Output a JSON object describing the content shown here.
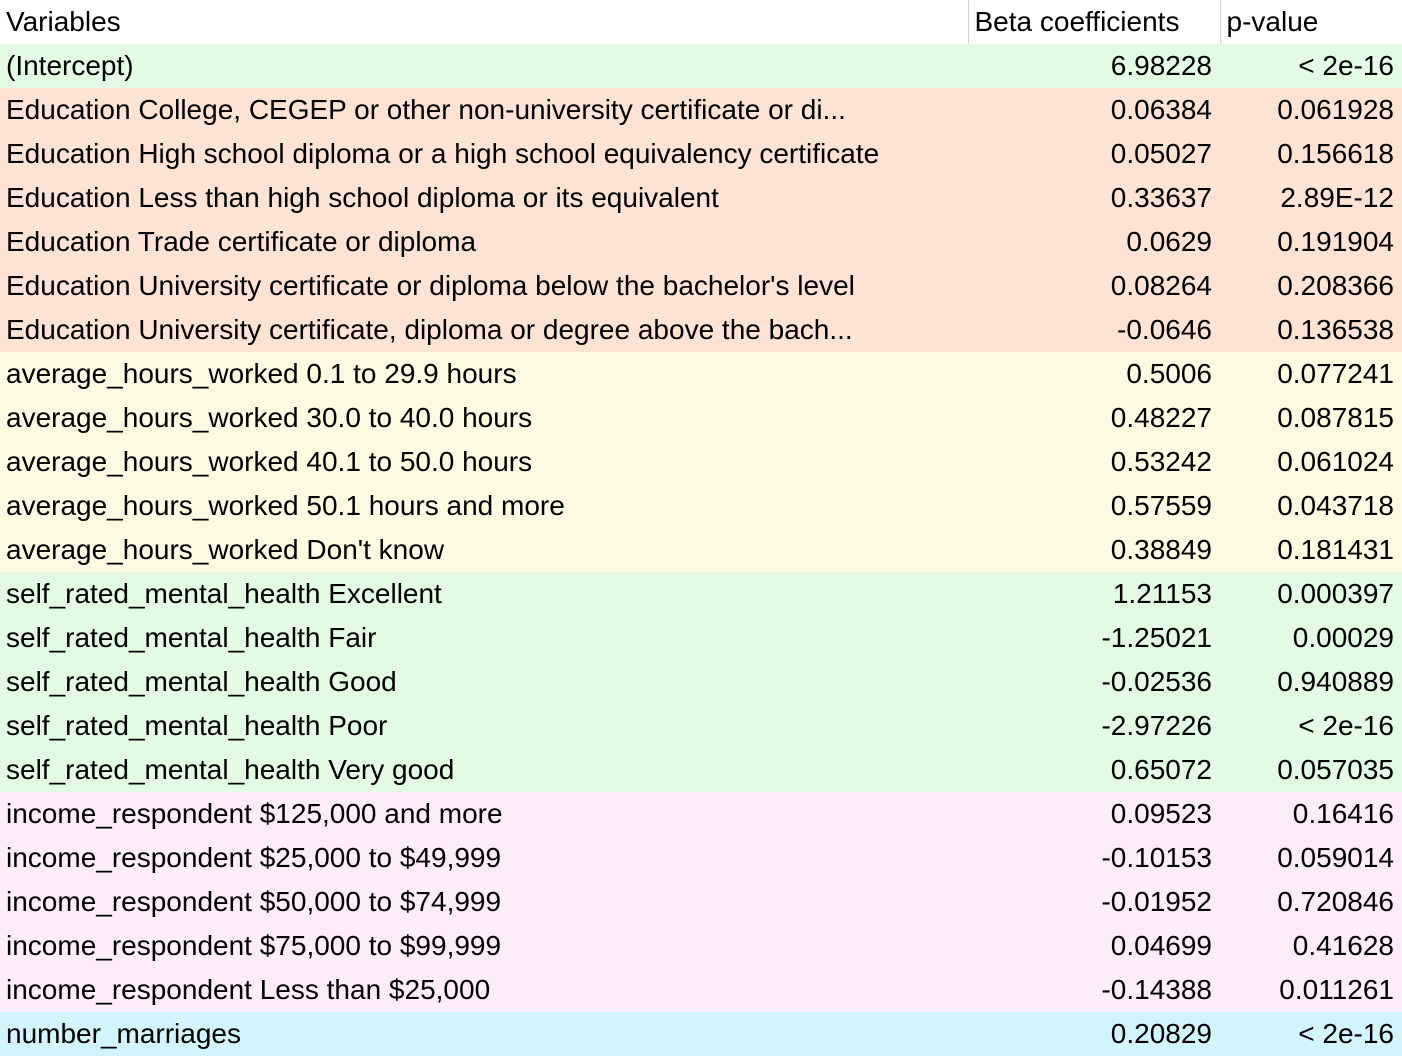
{
  "table": {
    "headers": {
      "variables": "Variables",
      "beta": "Beta coefficients",
      "pvalue": "p-value"
    },
    "colors": {
      "intercept": "#e2fbe2",
      "education": "#fde3d4",
      "hours": "#fefae2",
      "mental": "#e2fbe2",
      "income": "#fdecfa",
      "marriages": "#d2f5fb"
    },
    "rows": [
      {
        "variable": "(Intercept)",
        "beta": "6.98228",
        "pvalue": "< 2e-16",
        "group": "intercept"
      },
      {
        "variable": "Education College, CEGEP or other non-university certificate or di...",
        "beta": "0.06384",
        "pvalue": "0.061928",
        "group": "education"
      },
      {
        "variable": "Education High school diploma or a high school equivalency certificate",
        "beta": "0.05027",
        "pvalue": "0.156618",
        "group": "education"
      },
      {
        "variable": "Education Less than high school diploma or its equivalent",
        "beta": "0.33637",
        "pvalue": "2.89E-12",
        "group": "education"
      },
      {
        "variable": "Education Trade certificate or diploma",
        "beta": "0.0629",
        "pvalue": "0.191904",
        "group": "education"
      },
      {
        "variable": "Education University certificate or diploma below the bachelor's level",
        "beta": "0.08264",
        "pvalue": "0.208366",
        "group": "education"
      },
      {
        "variable": "Education University certificate, diploma or degree above the bach...",
        "beta": "-0.0646",
        "pvalue": "0.136538",
        "group": "education"
      },
      {
        "variable": "average_hours_worked 0.1 to 29.9 hours",
        "beta": "0.5006",
        "pvalue": "0.077241",
        "group": "hours"
      },
      {
        "variable": "average_hours_worked 30.0 to 40.0 hours",
        "beta": "0.48227",
        "pvalue": "0.087815",
        "group": "hours"
      },
      {
        "variable": "average_hours_worked 40.1 to 50.0 hours",
        "beta": "0.53242",
        "pvalue": "0.061024",
        "group": "hours"
      },
      {
        "variable": "average_hours_worked 50.1 hours and more",
        "beta": "0.57559",
        "pvalue": "0.043718",
        "group": "hours"
      },
      {
        "variable": "average_hours_worked Don't know",
        "beta": "0.38849",
        "pvalue": "0.181431",
        "group": "hours"
      },
      {
        "variable": "self_rated_mental_health Excellent",
        "beta": "1.21153",
        "pvalue": "0.000397",
        "group": "mental"
      },
      {
        "variable": "self_rated_mental_health Fair",
        "beta": "-1.25021",
        "pvalue": "0.00029",
        "group": "mental"
      },
      {
        "variable": "self_rated_mental_health Good",
        "beta": "-0.02536",
        "pvalue": "0.940889",
        "group": "mental"
      },
      {
        "variable": "self_rated_mental_health Poor",
        "beta": "-2.97226",
        "pvalue": "< 2e-16",
        "group": "mental"
      },
      {
        "variable": "self_rated_mental_health Very good",
        "beta": "0.65072",
        "pvalue": "0.057035",
        "group": "mental"
      },
      {
        "variable": "income_respondent $125,000 and more",
        "beta": "0.09523",
        "pvalue": "0.16416",
        "group": "income"
      },
      {
        "variable": "income_respondent $25,000 to $49,999",
        "beta": "-0.10153",
        "pvalue": "0.059014",
        "group": "income"
      },
      {
        "variable": "income_respondent $50,000 to $74,999",
        "beta": "-0.01952",
        "pvalue": "0.720846",
        "group": "income"
      },
      {
        "variable": "income_respondent $75,000 to $99,999",
        "beta": "0.04699",
        "pvalue": "0.41628",
        "group": "income"
      },
      {
        "variable": "income_respondent Less than $25,000",
        "beta": "-0.14388",
        "pvalue": "0.011261",
        "group": "income"
      },
      {
        "variable": "number_marriages",
        "beta": "0.20829",
        "pvalue": "< 2e-16",
        "group": "marriages"
      }
    ]
  }
}
